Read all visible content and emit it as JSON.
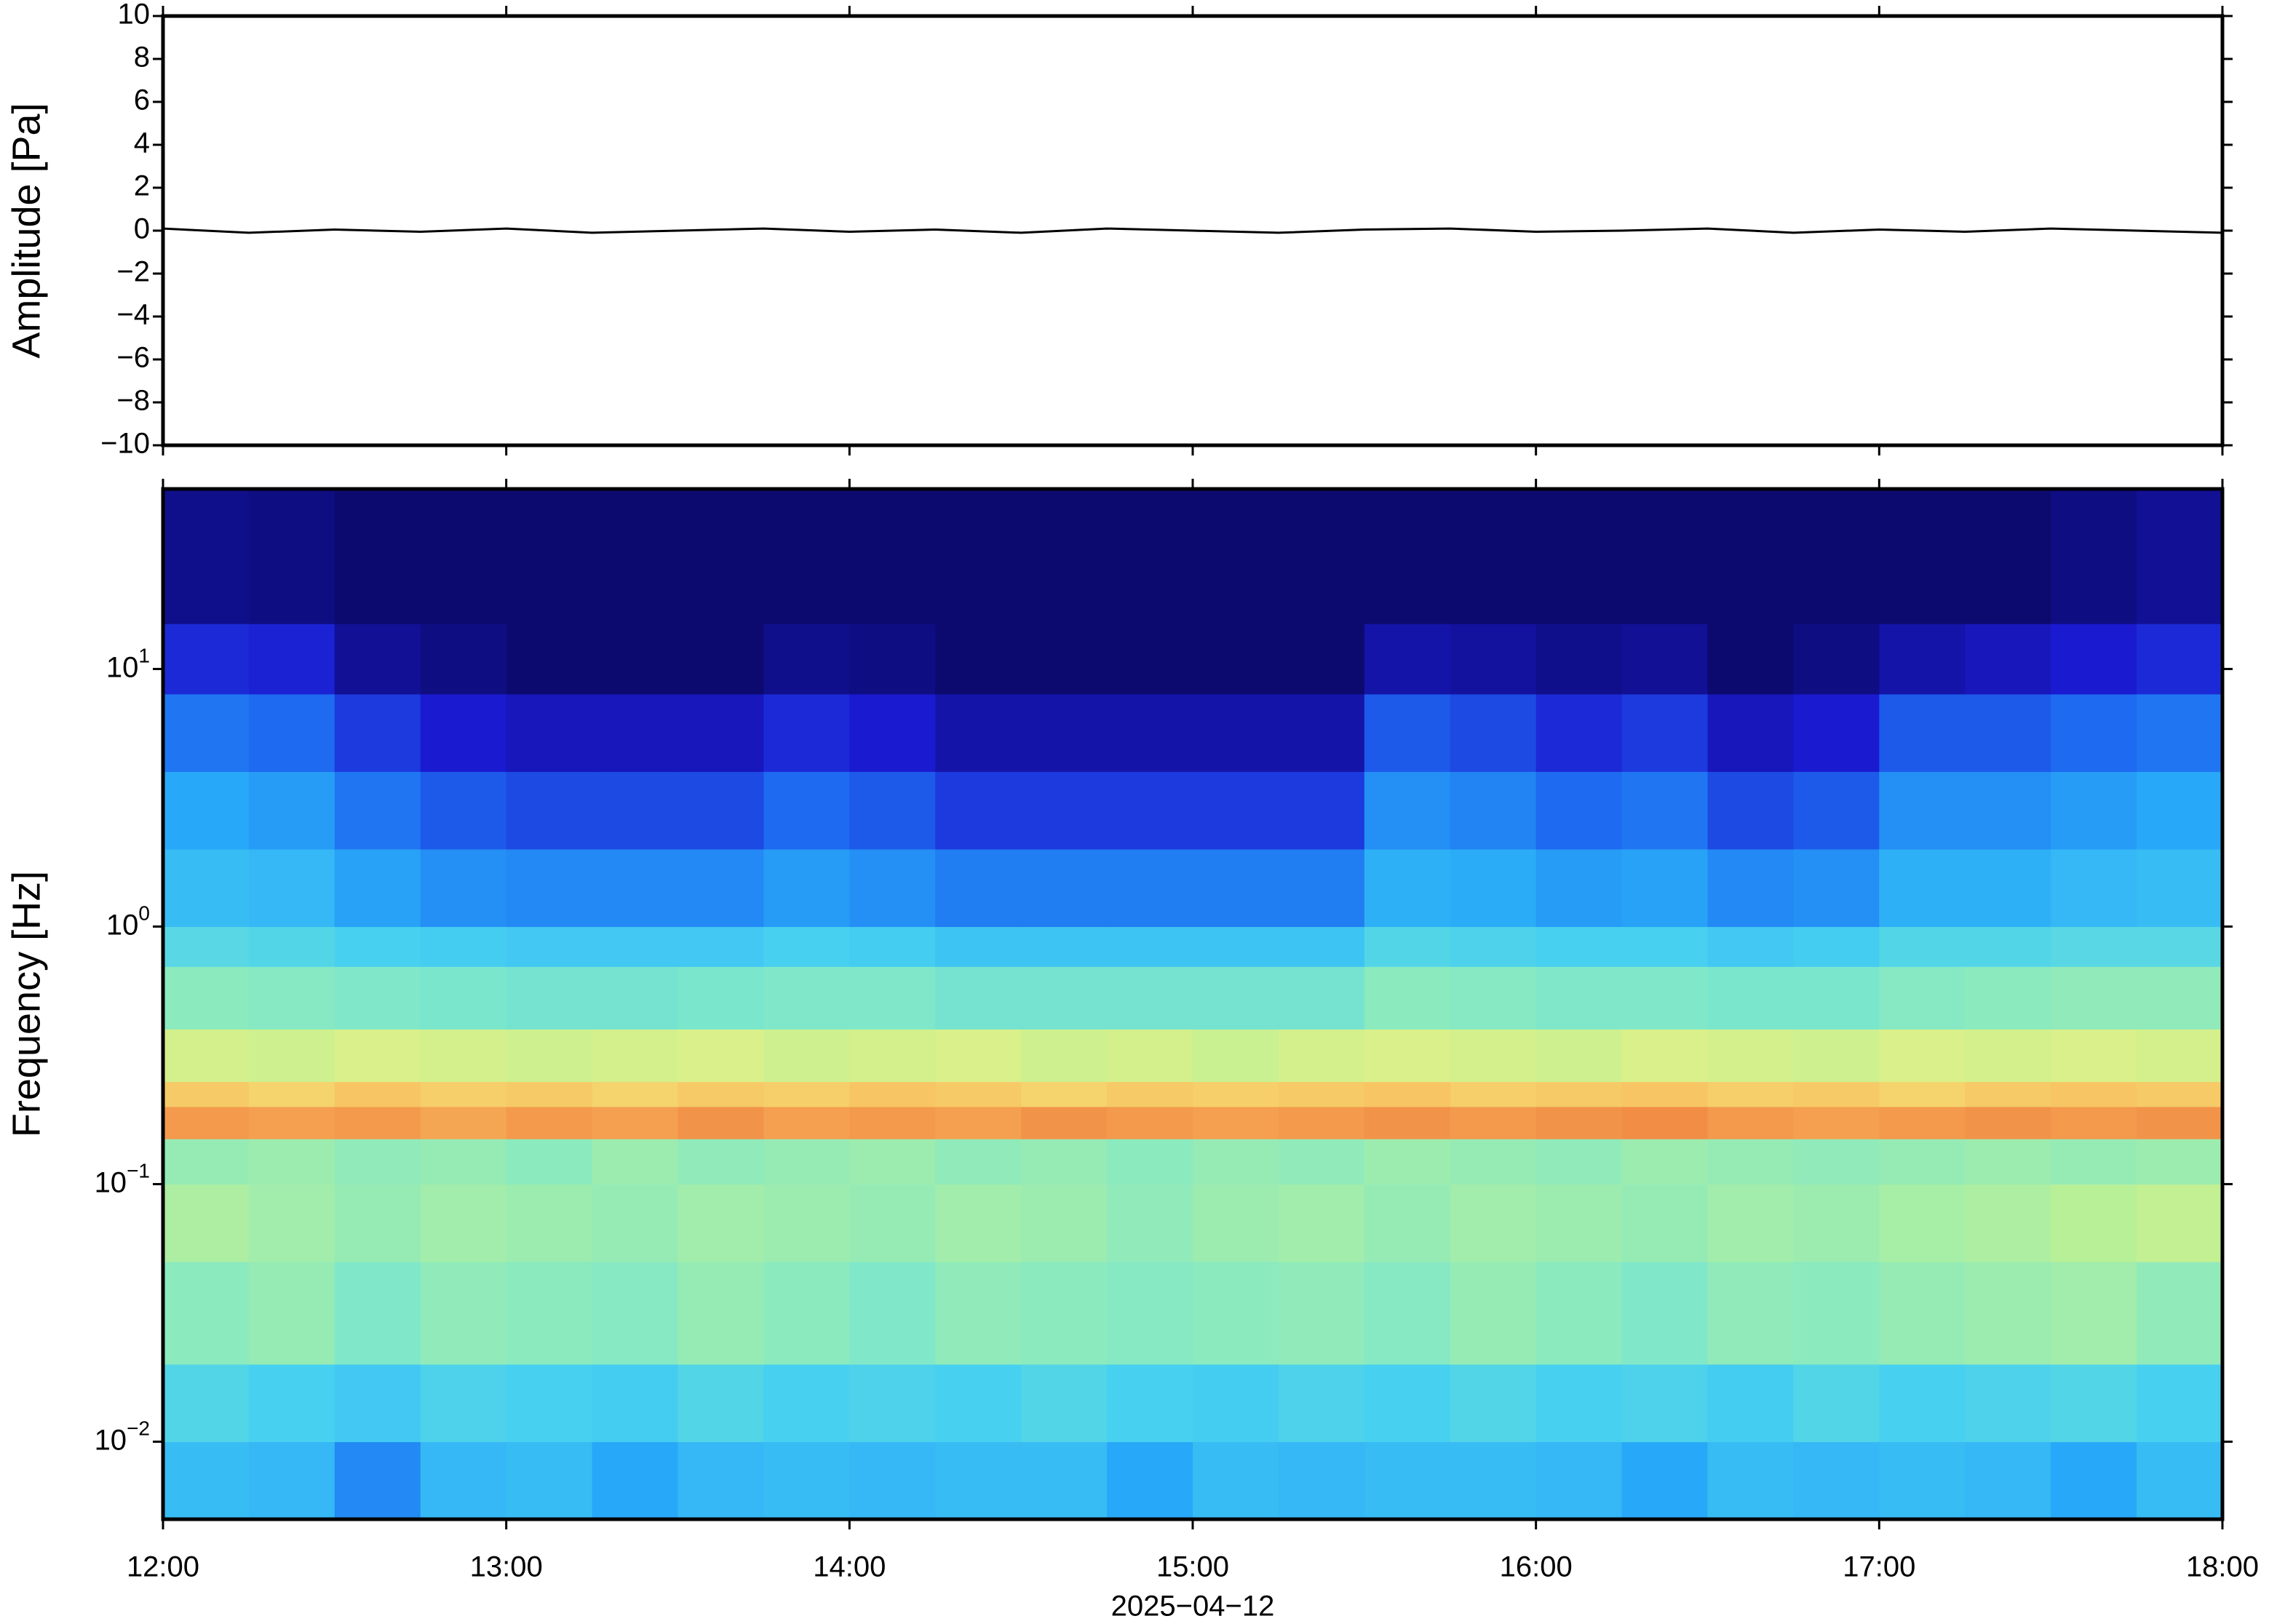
{
  "chart_data": [
    {
      "type": "line",
      "ylabel": "Amplitude [Pa]",
      "xlim": [
        "12:00",
        "18:00"
      ],
      "ylim": [
        -10,
        10
      ],
      "yticks": [
        {
          "value": -10,
          "label": "−10"
        },
        {
          "value": -8,
          "label": "−8"
        },
        {
          "value": -6,
          "label": "−6"
        },
        {
          "value": -4,
          "label": "−4"
        },
        {
          "value": -2,
          "label": "−2"
        },
        0,
        2,
        4,
        6,
        8,
        10
      ],
      "x": [
        "12:00",
        "12:15",
        "12:30",
        "12:45",
        "13:00",
        "13:15",
        "13:30",
        "13:45",
        "14:00",
        "14:15",
        "14:30",
        "14:45",
        "15:00",
        "15:15",
        "15:30",
        "15:45",
        "16:00",
        "16:15",
        "16:30",
        "16:45",
        "17:00",
        "17:15",
        "17:30",
        "17:45",
        "18:00"
      ],
      "series": [
        {
          "color": "#000000",
          "values": [
            0.1,
            -0.1,
            0.05,
            -0.05,
            0.1,
            -0.1,
            0,
            0.1,
            -0.05,
            0.05,
            -0.1,
            0.1,
            0,
            -0.1,
            0.05,
            0.1,
            -0.05,
            0,
            0.1,
            -0.1,
            0.05,
            -0.05,
            0.1,
            0,
            -0.1
          ]
        }
      ]
    },
    {
      "type": "heatmap",
      "ylabel": "Frequency [Hz]",
      "xlabel": "2025−04−12",
      "xlim": [
        "12:00",
        "18:00"
      ],
      "xticks": [
        "12:00",
        "13:00",
        "14:00",
        "15:00",
        "16:00",
        "17:00",
        "18:00"
      ],
      "ylim": [
        0.005,
        50
      ],
      "log_y": true,
      "yticks": [
        {
          "value": 0.01,
          "label": "10^−2"
        },
        {
          "value": 0.1,
          "label": "10^−1"
        },
        {
          "value": 1,
          "label": "10^0"
        },
        {
          "value": 10,
          "label": "10^1"
        }
      ],
      "x_edges": [
        "12:00",
        "12:15",
        "12:30",
        "12:45",
        "13:00",
        "13:15",
        "13:30",
        "13:45",
        "14:00",
        "14:15",
        "14:30",
        "14:45",
        "15:00",
        "15:15",
        "15:30",
        "15:45",
        "16:00",
        "16:15",
        "16:30",
        "16:45",
        "17:00",
        "17:15",
        "17:30",
        "17:45",
        "18:00"
      ],
      "y_edges": [
        0.005,
        0.01,
        0.02,
        0.05,
        0.1,
        0.15,
        0.2,
        0.25,
        0.4,
        0.7,
        1,
        2,
        4,
        8,
        15,
        50
      ],
      "zlim": [
        0,
        10
      ],
      "colormap": [
        "#0c0a6e",
        "#1a1ad0",
        "#1e6af0",
        "#28a8f8",
        "#48d0f0",
        "#80e8c8",
        "#b8f098",
        "#f0f080",
        "#f8c060",
        "#f08040",
        "#d83020"
      ],
      "z": [
        [
          3.5,
          3.4,
          2.5,
          3.4,
          3.5,
          3.0,
          3.4,
          3.5,
          3.4,
          3.5,
          3.5,
          3.0,
          3.5,
          3.4,
          3.5,
          3.5,
          3.4,
          3.0,
          3.5,
          3.4,
          3.5,
          3.4,
          3.0,
          3.5
        ],
        [
          4.2,
          4.0,
          3.8,
          4.1,
          4.0,
          3.9,
          4.2,
          4.0,
          4.1,
          4.0,
          4.2,
          4.0,
          3.9,
          4.1,
          4.0,
          4.2,
          4.0,
          4.1,
          3.9,
          4.2,
          4.0,
          4.1,
          4.2,
          4.0
        ],
        [
          5.2,
          5.4,
          5.0,
          5.3,
          5.2,
          5.1,
          5.4,
          5.2,
          5.0,
          5.3,
          5.2,
          5.1,
          5.2,
          5.3,
          5.1,
          5.4,
          5.2,
          5.0,
          5.3,
          5.2,
          5.4,
          5.5,
          5.6,
          5.3
        ],
        [
          5.8,
          5.6,
          5.4,
          5.6,
          5.5,
          5.4,
          5.6,
          5.5,
          5.4,
          5.6,
          5.5,
          5.3,
          5.5,
          5.6,
          5.4,
          5.6,
          5.5,
          5.4,
          5.6,
          5.5,
          5.7,
          5.8,
          6.0,
          6.2
        ],
        [
          5.4,
          5.5,
          5.3,
          5.4,
          5.2,
          5.5,
          5.3,
          5.4,
          5.5,
          5.3,
          5.4,
          5.2,
          5.4,
          5.3,
          5.5,
          5.4,
          5.3,
          5.5,
          5.4,
          5.3,
          5.4,
          5.5,
          5.4,
          5.5
        ],
        [
          8.6,
          8.5,
          8.6,
          8.4,
          8.6,
          8.5,
          8.7,
          8.5,
          8.6,
          8.5,
          8.7,
          8.6,
          8.5,
          8.6,
          8.7,
          8.6,
          8.7,
          8.8,
          8.6,
          8.5,
          8.6,
          8.7,
          8.6,
          8.7
        ],
        [
          7.8,
          7.6,
          7.9,
          7.7,
          7.8,
          7.6,
          7.8,
          7.7,
          7.9,
          7.8,
          7.6,
          7.8,
          7.7,
          7.8,
          7.9,
          7.7,
          7.8,
          7.9,
          7.7,
          7.8,
          7.6,
          7.8,
          7.9,
          7.8
        ],
        [
          6.5,
          6.4,
          6.6,
          6.5,
          6.4,
          6.5,
          6.6,
          6.4,
          6.5,
          6.6,
          6.4,
          6.5,
          6.3,
          6.5,
          6.6,
          6.5,
          6.4,
          6.6,
          6.5,
          6.4,
          6.6,
          6.5,
          6.6,
          6.5
        ],
        [
          5.2,
          5.1,
          5.0,
          4.9,
          4.8,
          4.8,
          4.9,
          5.0,
          5.0,
          4.8,
          4.8,
          4.8,
          4.8,
          4.8,
          5.2,
          5.1,
          5.0,
          5.0,
          4.9,
          4.9,
          5.1,
          5.2,
          5.3,
          5.3
        ],
        [
          4.3,
          4.2,
          4.0,
          3.9,
          3.8,
          3.8,
          3.8,
          4.0,
          3.9,
          3.7,
          3.7,
          3.7,
          3.7,
          3.7,
          4.2,
          4.1,
          4.0,
          4.0,
          3.8,
          3.9,
          4.2,
          4.2,
          4.3,
          4.3
        ],
        [
          3.5,
          3.4,
          2.9,
          2.6,
          2.5,
          2.5,
          2.5,
          2.8,
          2.6,
          2.3,
          2.3,
          2.3,
          2.3,
          2.3,
          3.2,
          3.1,
          2.8,
          2.9,
          2.5,
          2.6,
          3.2,
          3.2,
          3.4,
          3.5
        ],
        [
          3.0,
          2.8,
          2.2,
          1.8,
          1.6,
          1.6,
          1.6,
          2.0,
          1.8,
          1.4,
          1.4,
          1.4,
          1.4,
          1.4,
          2.6,
          2.4,
          2.0,
          2.2,
          1.6,
          1.8,
          2.6,
          2.6,
          2.8,
          3.0
        ],
        [
          2.2,
          2.0,
          1.4,
          1.0,
          0.8,
          0.8,
          0.8,
          1.2,
          1.0,
          0.6,
          0.6,
          0.6,
          0.6,
          0.6,
          1.8,
          1.6,
          1.2,
          1.4,
          0.8,
          1.0,
          1.8,
          1.8,
          2.0,
          2.2
        ],
        [
          1.2,
          1.1,
          0.4,
          0.2,
          0,
          0,
          0,
          0.3,
          0.2,
          0,
          0,
          0,
          0,
          0,
          0.6,
          0.5,
          0.3,
          0.4,
          0,
          0.2,
          0.6,
          0.8,
          1.0,
          1.2
        ],
        [
          0.3,
          0.2,
          0,
          0,
          0,
          0,
          0,
          0,
          0,
          0,
          0,
          0,
          0,
          0,
          0,
          0,
          0,
          0,
          0,
          0,
          0,
          0,
          0.2,
          0.4
        ]
      ]
    }
  ]
}
